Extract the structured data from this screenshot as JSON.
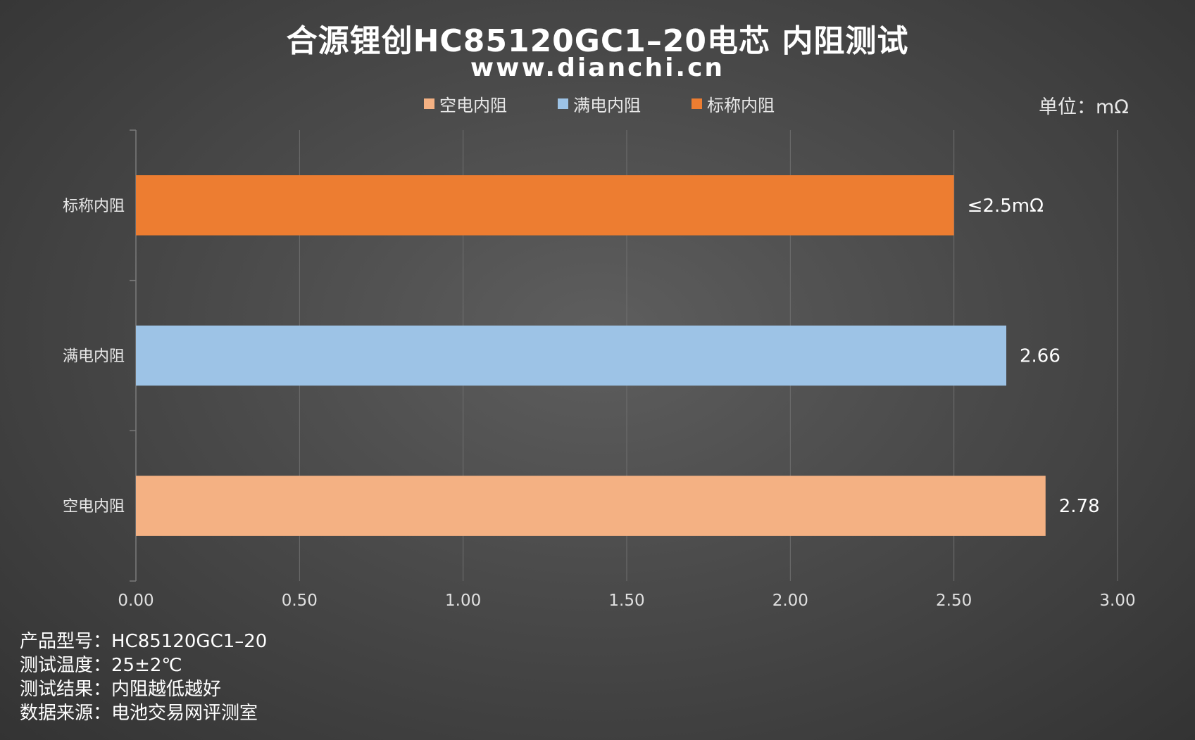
{
  "chart_data": {
    "type": "bar",
    "orientation": "horizontal",
    "title": "合源锂创HC85120GC1–20电芯 内阻测试",
    "subtitle": "www.dianchi.cn",
    "unit_label": "单位：mΩ",
    "categories": [
      "标称内阻",
      "满电内阻",
      "空电内阻"
    ],
    "values": [
      2.5,
      2.66,
      2.78
    ],
    "data_labels": [
      "≤2.5mΩ",
      "2.66",
      "2.78"
    ],
    "colors": [
      "#ED7D31",
      "#9DC3E6",
      "#F4B183"
    ],
    "xlim": [
      0,
      3
    ],
    "x_ticks": [
      0,
      0.5,
      1,
      1.5,
      2,
      2.5,
      3
    ],
    "x_tick_labels": [
      "0.00",
      "0.50",
      "1.00",
      "1.50",
      "2.00",
      "2.50",
      "3.00"
    ],
    "grid": true,
    "legend": {
      "placement": "top-center",
      "entries": [
        {
          "name": "空电内阻",
          "color": "#F4B183"
        },
        {
          "name": "满电内阻",
          "color": "#9DC3E6"
        },
        {
          "name": "标称内阻",
          "color": "#ED7D31"
        }
      ]
    }
  },
  "notes": [
    "产品型号：HC85120GC1–20",
    "测试温度：25±2℃",
    "测试结果：内阻越低越好",
    "数据来源：电池交易网评测室"
  ]
}
